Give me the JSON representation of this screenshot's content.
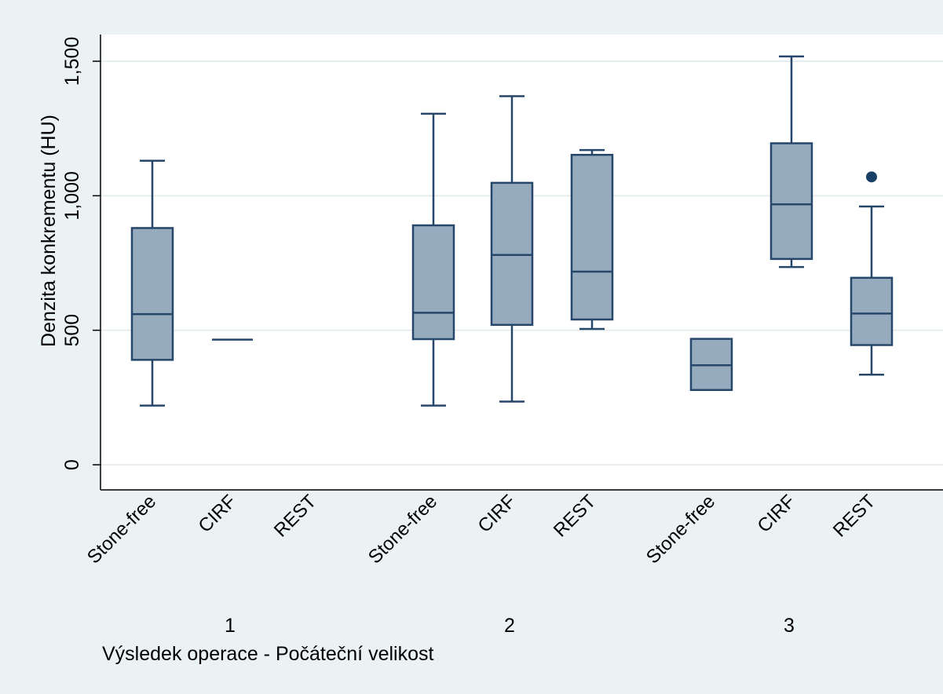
{
  "chart_data": {
    "type": "box",
    "title": "",
    "ylabel": "Denzita konkrementu (HU)",
    "xlabel": "Výsledek operace - Počáteční velikost",
    "ylim": [
      -80,
      1600
    ],
    "yticks": [
      0,
      500,
      1000,
      1500
    ],
    "ytick_labels": [
      "0",
      "500",
      "1,000",
      "1,500"
    ],
    "grid": true,
    "colors": {
      "box_fill": "#97abbe",
      "stroke": "#26476a",
      "outlier": "#1a3f66",
      "plot_bg": "#ffffff",
      "frame_bg": "#eaf2f3",
      "grid": "#e6eeef"
    },
    "groups": [
      {
        "label": "1",
        "boxes": [
          {
            "category": "Stone-free",
            "whisker_low": 220,
            "q1": 390,
            "median": 560,
            "q3": 880,
            "whisker_high": 1130,
            "outliers": []
          },
          {
            "category": "CIRF",
            "whisker_low": 465,
            "q1": 465,
            "median": 465,
            "q3": 465,
            "whisker_high": 465,
            "outliers": []
          },
          {
            "category": "REST",
            "empty": true
          }
        ]
      },
      {
        "label": "2",
        "boxes": [
          {
            "category": "Stone-free",
            "whisker_low": 220,
            "q1": 467,
            "median": 565,
            "q3": 890,
            "whisker_high": 1305,
            "outliers": []
          },
          {
            "category": "CIRF",
            "whisker_low": 235,
            "q1": 520,
            "median": 780,
            "q3": 1048,
            "whisker_high": 1370,
            "outliers": []
          },
          {
            "category": "REST",
            "whisker_low": 505,
            "q1": 540,
            "median": 718,
            "q3": 1152,
            "whisker_high": 1170,
            "outliers": []
          }
        ]
      },
      {
        "label": "3",
        "boxes": [
          {
            "category": "Stone-free",
            "whisker_low": 278,
            "q1": 278,
            "median": 370,
            "q3": 468,
            "whisker_high": 468,
            "outliers": []
          },
          {
            "category": "CIRF",
            "whisker_low": 735,
            "q1": 765,
            "median": 968,
            "q3": 1195,
            "whisker_high": 1518,
            "outliers": []
          },
          {
            "category": "REST",
            "whisker_low": 335,
            "q1": 445,
            "median": 562,
            "q3": 695,
            "whisker_high": 960,
            "outliers": [
              1070
            ]
          }
        ]
      }
    ]
  }
}
